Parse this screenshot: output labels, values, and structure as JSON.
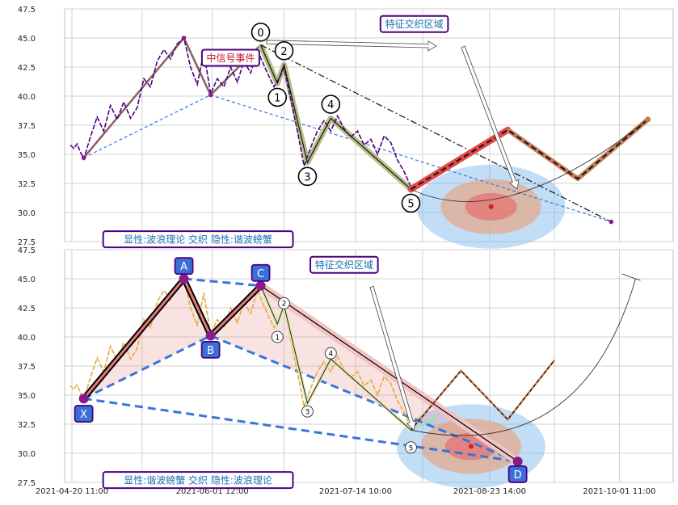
{
  "colors": {
    "background": "#ffffff",
    "grid": "#d0d0d0",
    "price_top": "#4b0082",
    "price_bottom": "#e8a93a",
    "wave_fill": "#b5bf86",
    "wave_line": "#111111",
    "trend_line": "#3a75d8",
    "projection": "#e24a4a",
    "projection_outline": "#c9805a",
    "pattern_fill": "#e07a7a",
    "pattern_line": "#000000",
    "label_border": "#4b0082",
    "label_text_blue": "#1a6fb0",
    "label_text_red": "#c8102e",
    "point_box_fill": "#3a6fd8",
    "marker_purple": "#8b1a8b"
  },
  "chart_data": [
    {
      "type": "line",
      "panel": "top",
      "ylim": [
        27.5,
        47.5
      ],
      "y_ticks": [
        "27.5",
        "30.0",
        "32.5",
        "35.0",
        "37.5",
        "40.0",
        "42.5",
        "45.0",
        "47.5"
      ],
      "grid": true,
      "series": [
        {
          "role": "price",
          "points": [
            [
              "2021-04-20",
              35.8
            ],
            [
              "2021-04-21",
              35.5
            ],
            [
              "2021-04-22",
              35.9
            ],
            [
              "2021-04-23",
              35.2
            ],
            [
              "2021-04-24",
              34.6
            ],
            [
              "2021-04-26",
              36.5
            ],
            [
              "2021-04-28",
              38.2
            ],
            [
              "2021-04-30",
              37.0
            ],
            [
              "2021-05-02",
              39.2
            ],
            [
              "2021-05-04",
              38.0
            ],
            [
              "2021-05-06",
              39.5
            ],
            [
              "2021-05-08",
              38.1
            ],
            [
              "2021-05-10",
              39.0
            ],
            [
              "2021-05-12",
              41.5
            ],
            [
              "2021-05-14",
              40.8
            ],
            [
              "2021-05-16",
              43.0
            ],
            [
              "2021-05-18",
              44.0
            ],
            [
              "2021-05-20",
              43.2
            ],
            [
              "2021-05-22",
              44.5
            ],
            [
              "2021-05-24",
              45.0
            ],
            [
              "2021-05-26",
              42.5
            ],
            [
              "2021-05-28",
              41.0
            ],
            [
              "2021-05-30",
              43.8
            ],
            [
              "2021-06-01",
              40.2
            ],
            [
              "2021-06-03",
              41.5
            ],
            [
              "2021-06-05",
              40.8
            ],
            [
              "2021-06-07",
              42.5
            ],
            [
              "2021-06-09",
              41.2
            ],
            [
              "2021-06-11",
              43.0
            ],
            [
              "2021-06-13",
              42.0
            ],
            [
              "2021-06-15",
              44.0
            ],
            [
              "2021-06-16",
              43.3
            ],
            [
              "2021-06-18",
              42.0
            ],
            [
              "2021-06-20",
              40.8
            ],
            [
              "2021-06-22",
              41.8
            ],
            [
              "2021-06-23",
              42.4
            ],
            [
              "2021-06-25",
              39.8
            ],
            [
              "2021-06-27",
              37.0
            ],
            [
              "2021-06-29",
              34.0
            ],
            [
              "2021-07-01",
              35.6
            ],
            [
              "2021-07-03",
              37.0
            ],
            [
              "2021-07-05",
              37.9
            ],
            [
              "2021-07-07",
              37.0
            ],
            [
              "2021-07-09",
              38.3
            ],
            [
              "2021-07-11",
              37.2
            ],
            [
              "2021-07-13",
              36.5
            ],
            [
              "2021-07-15",
              37.0
            ],
            [
              "2021-07-17",
              35.8
            ],
            [
              "2021-07-19",
              36.3
            ],
            [
              "2021-07-21",
              35.0
            ],
            [
              "2021-07-23",
              36.6
            ],
            [
              "2021-07-25",
              36.0
            ],
            [
              "2021-07-27",
              34.5
            ],
            [
              "2021-07-29",
              33.5
            ],
            [
              "2021-07-31",
              32.2
            ]
          ]
        },
        {
          "role": "wave-path",
          "points": [
            [
              "2021-06-16",
              44.4
            ],
            [
              "2021-06-21",
              41.1
            ],
            [
              "2021-06-23",
              42.7
            ],
            [
              "2021-06-30",
              34.3
            ],
            [
              "2021-07-07",
              38.1
            ],
            [
              "2021-07-31",
              32.0
            ]
          ]
        },
        {
          "role": "xabcd-thin",
          "points": [
            [
              "2021-04-24",
              34.7
            ],
            [
              "2021-05-24",
              45.0
            ],
            [
              "2021-06-01",
              40.1
            ],
            [
              "2021-06-16",
              44.4
            ]
          ]
        },
        {
          "role": "trend-dashdot",
          "points": [
            [
              "2021-06-16",
              44.4
            ],
            [
              "2021-09-29",
              29.2
            ]
          ]
        },
        {
          "role": "trend-dashed",
          "points": [
            [
              "2021-04-24",
              34.7
            ],
            [
              "2021-06-01",
              40.1
            ],
            [
              "2021-09-29",
              29.2
            ]
          ]
        },
        {
          "role": "projection",
          "points": [
            [
              "2021-07-31",
              32.0
            ],
            [
              "2021-08-29",
              37.1
            ],
            [
              "2021-09-19",
              32.9
            ],
            [
              "2021-10-10",
              38.0
            ]
          ]
        }
      ],
      "wave_labels": [
        {
          "label": "0",
          "x": "2021-06-16",
          "y": 45.5
        },
        {
          "label": "1",
          "x": "2021-06-21",
          "y": 39.9
        },
        {
          "label": "2",
          "x": "2021-06-23",
          "y": 43.9
        },
        {
          "label": "3",
          "x": "2021-06-30",
          "y": 33.1
        },
        {
          "label": "4",
          "x": "2021-07-07",
          "y": 39.3
        },
        {
          "label": "5",
          "x": "2021-07-31",
          "y": 30.8
        }
      ],
      "annotations": [
        {
          "text": "中信号事件",
          "x": "2021-06-07",
          "y": 43.3,
          "color": "red"
        },
        {
          "text": "特征交织区域",
          "x": "2021-08-01",
          "y": 46.2,
          "color": "blue"
        },
        {
          "text": "显性:波浪理论 交织 隐性:谐波螃蟹",
          "x": "2021-05-05",
          "y": 27.7,
          "color": "blue"
        }
      ],
      "target_zone": {
        "x": "2021-08-24",
        "y": 30.5
      }
    },
    {
      "type": "line",
      "panel": "bottom",
      "ylim": [
        27.5,
        47.5
      ],
      "y_ticks": [
        "27.5",
        "30.0",
        "32.5",
        "35.0",
        "37.5",
        "40.0",
        "42.5",
        "45.0",
        "47.5"
      ],
      "x_ticks": [
        "2021-04-20 11:00",
        "2021-06-01 12:00",
        "2021-07-14 10:00",
        "2021-08-23 14:00",
        "2021-10-01 11:00"
      ],
      "grid": true,
      "series": [
        {
          "role": "price",
          "points": [
            [
              "2021-04-20",
              35.8
            ],
            [
              "2021-04-21",
              35.5
            ],
            [
              "2021-04-22",
              35.9
            ],
            [
              "2021-04-23",
              35.2
            ],
            [
              "2021-04-24",
              34.6
            ],
            [
              "2021-04-26",
              36.5
            ],
            [
              "2021-04-28",
              38.2
            ],
            [
              "2021-04-30",
              37.0
            ],
            [
              "2021-05-02",
              39.2
            ],
            [
              "2021-05-04",
              38.0
            ],
            [
              "2021-05-06",
              39.5
            ],
            [
              "2021-05-08",
              38.1
            ],
            [
              "2021-05-10",
              39.0
            ],
            [
              "2021-05-12",
              41.5
            ],
            [
              "2021-05-14",
              40.8
            ],
            [
              "2021-05-16",
              43.0
            ],
            [
              "2021-05-18",
              44.0
            ],
            [
              "2021-05-20",
              43.2
            ],
            [
              "2021-05-22",
              44.5
            ],
            [
              "2021-05-24",
              45.0
            ],
            [
              "2021-05-26",
              42.5
            ],
            [
              "2021-05-28",
              41.0
            ],
            [
              "2021-05-30",
              43.8
            ],
            [
              "2021-06-01",
              40.2
            ],
            [
              "2021-06-03",
              41.5
            ],
            [
              "2021-06-05",
              40.8
            ],
            [
              "2021-06-07",
              42.5
            ],
            [
              "2021-06-09",
              41.2
            ],
            [
              "2021-06-11",
              43.0
            ],
            [
              "2021-06-13",
              42.0
            ],
            [
              "2021-06-15",
              44.0
            ],
            [
              "2021-06-16",
              43.3
            ],
            [
              "2021-06-18",
              42.0
            ],
            [
              "2021-06-20",
              40.8
            ],
            [
              "2021-06-22",
              41.8
            ],
            [
              "2021-06-23",
              42.4
            ],
            [
              "2021-06-25",
              39.8
            ],
            [
              "2021-06-27",
              37.0
            ],
            [
              "2021-06-29",
              34.0
            ],
            [
              "2021-07-01",
              35.6
            ],
            [
              "2021-07-03",
              37.0
            ],
            [
              "2021-07-05",
              37.9
            ],
            [
              "2021-07-07",
              37.0
            ],
            [
              "2021-07-09",
              38.3
            ],
            [
              "2021-07-11",
              37.2
            ],
            [
              "2021-07-13",
              36.5
            ],
            [
              "2021-07-15",
              37.0
            ],
            [
              "2021-07-17",
              35.8
            ],
            [
              "2021-07-19",
              36.3
            ],
            [
              "2021-07-21",
              35.0
            ],
            [
              "2021-07-23",
              36.6
            ],
            [
              "2021-07-25",
              36.0
            ],
            [
              "2021-07-27",
              34.5
            ],
            [
              "2021-07-29",
              33.5
            ],
            [
              "2021-07-31",
              32.2
            ]
          ]
        },
        {
          "role": "xabcd",
          "points": [
            [
              "2021-04-24",
              34.7
            ],
            [
              "2021-05-24",
              45.0
            ],
            [
              "2021-06-01",
              40.1
            ],
            [
              "2021-06-16",
              44.4
            ],
            [
              "2021-09-01",
              29.3
            ]
          ]
        },
        {
          "role": "xb-bd-dashed",
          "points": [
            [
              "2021-04-24",
              34.7
            ],
            [
              "2021-06-01",
              40.1
            ],
            [
              "2021-09-01",
              29.3
            ]
          ]
        },
        {
          "role": "xd-dashed",
          "points": [
            [
              "2021-04-24",
              34.7
            ],
            [
              "2021-09-01",
              29.3
            ]
          ]
        },
        {
          "role": "ac-dashed",
          "points": [
            [
              "2021-05-24",
              45.0
            ],
            [
              "2021-06-16",
              44.4
            ]
          ]
        },
        {
          "role": "wave-path",
          "points": [
            [
              "2021-06-16",
              44.4
            ],
            [
              "2021-06-21",
              41.1
            ],
            [
              "2021-06-23",
              42.7
            ],
            [
              "2021-06-30",
              34.3
            ],
            [
              "2021-07-07",
              38.1
            ],
            [
              "2021-07-31",
              32.0
            ]
          ]
        },
        {
          "role": "projection-dashed",
          "points": [
            [
              "2021-07-31",
              32.0
            ],
            [
              "2021-08-15",
              37.1
            ],
            [
              "2021-08-29",
              32.9
            ],
            [
              "2021-09-12",
              38.0
            ]
          ]
        }
      ],
      "point_labels": [
        {
          "label": "X",
          "x": "2021-04-24",
          "y": 33.4
        },
        {
          "label": "A",
          "x": "2021-05-24",
          "y": 46.1
        },
        {
          "label": "B",
          "x": "2021-06-01",
          "y": 38.9
        },
        {
          "label": "C",
          "x": "2021-06-16",
          "y": 45.5
        },
        {
          "label": "D",
          "x": "2021-09-01",
          "y": 28.2
        }
      ],
      "wave_labels": [
        {
          "label": "1",
          "x": "2021-06-21",
          "y": 40.0
        },
        {
          "label": "2",
          "x": "2021-06-23",
          "y": 42.9
        },
        {
          "label": "3",
          "x": "2021-06-30",
          "y": 33.6
        },
        {
          "label": "4",
          "x": "2021-07-07",
          "y": 38.6
        },
        {
          "label": "5",
          "x": "2021-07-31",
          "y": 30.5
        }
      ],
      "annotations": [
        {
          "text": "特征交织区域",
          "x": "2021-07-11",
          "y": 46.2,
          "color": "blue"
        },
        {
          "text": "显性:谐波螃蟹 交织 隐性:波浪理论",
          "x": "2021-05-05",
          "y": 27.7,
          "color": "blue"
        }
      ],
      "target_zone": {
        "x": "2021-08-18",
        "y": 30.6
      }
    }
  ]
}
